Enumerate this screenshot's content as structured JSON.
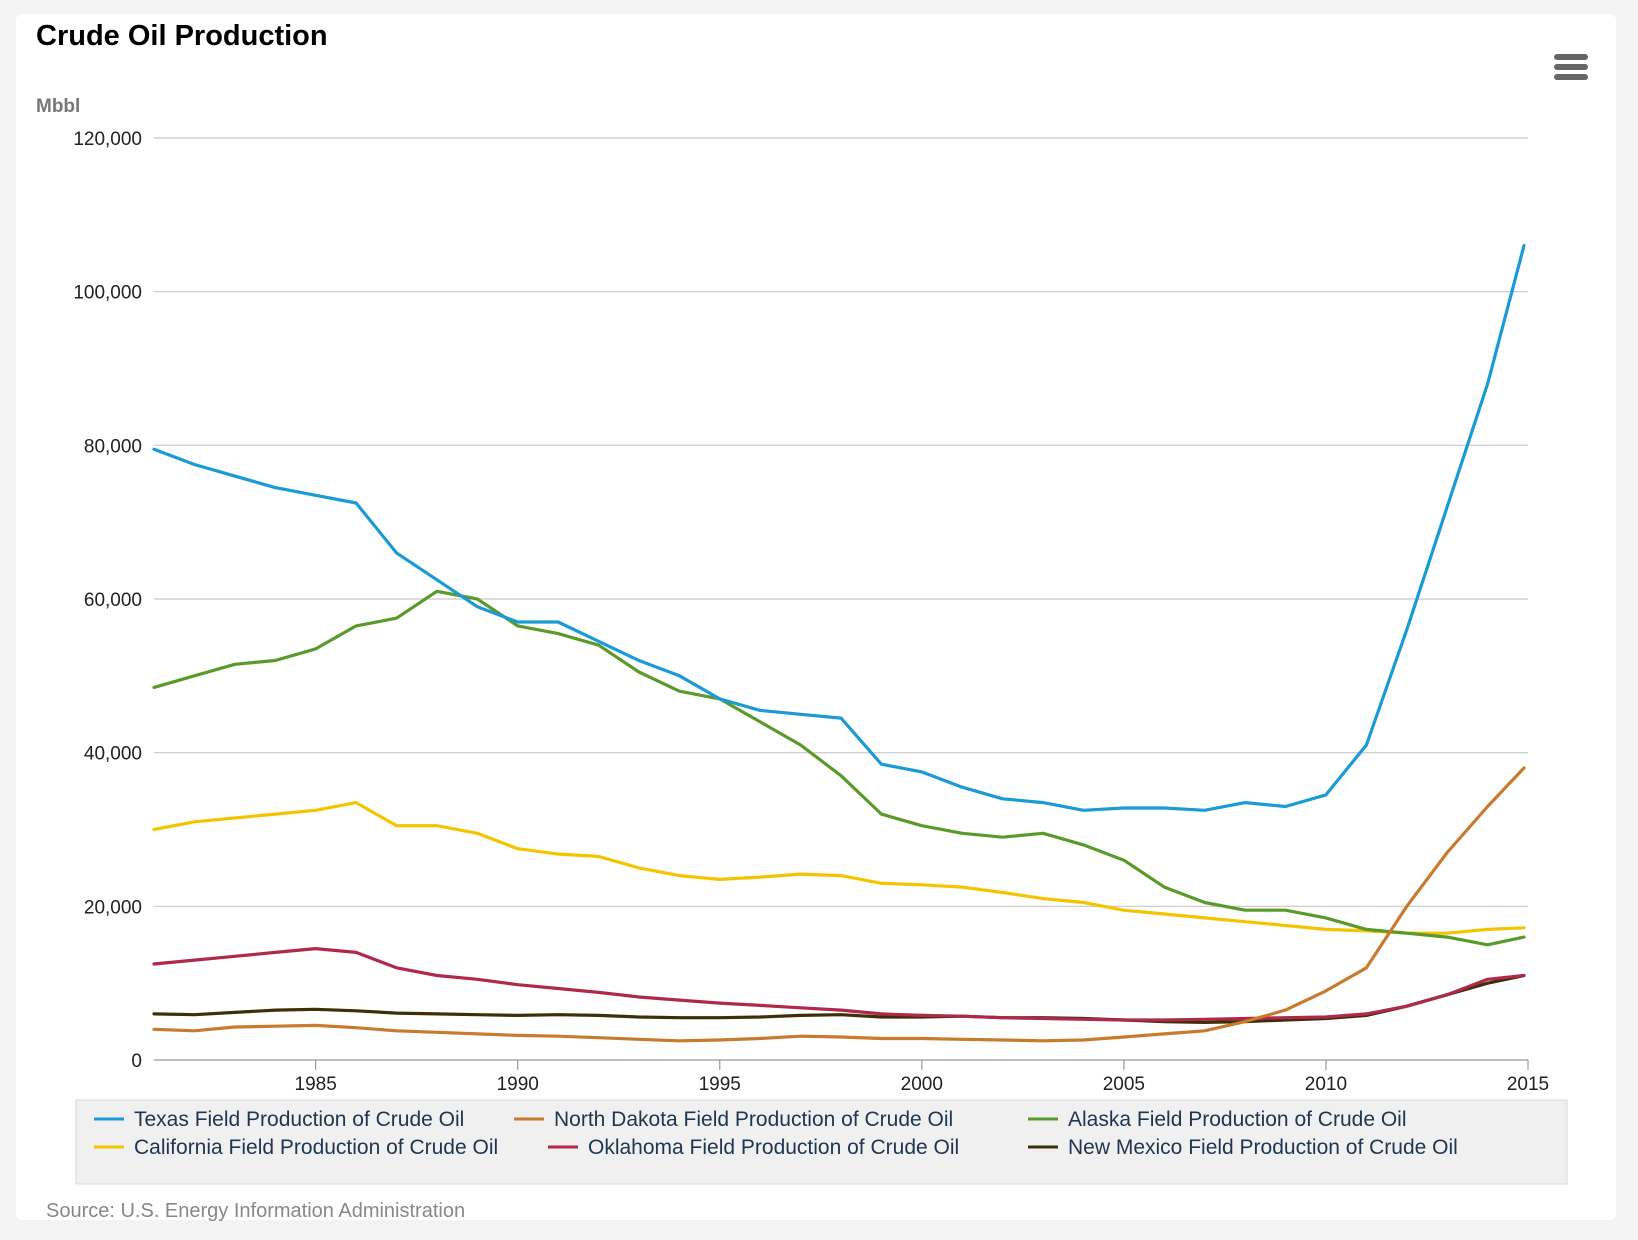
{
  "chart_data": {
    "type": "line",
    "title": "Crude Oil Production",
    "ylabel": "Mbbl",
    "source": "Source: U.S. Energy Information Administration",
    "xlim": [
      1981.0,
      2015.0
    ],
    "ylim": [
      0,
      120000
    ],
    "yticks": [
      0,
      20000,
      40000,
      60000,
      80000,
      100000,
      120000
    ],
    "ytick_labels": [
      "0",
      "20,000",
      "40,000",
      "60,000",
      "80,000",
      "100,000",
      "120,000"
    ],
    "xticks": [
      1985,
      1990,
      1995,
      2000,
      2005,
      2010,
      2015
    ],
    "xtick_labels": [
      "1985",
      "1990",
      "1995",
      "2000",
      "2005",
      "2010",
      "2015"
    ],
    "grid": "horizontal",
    "legend_position": "bottom",
    "series": [
      {
        "name": "Texas Field Production of Crude Oil",
        "color": "#1a9ad6",
        "x": [
          1981,
          1982,
          1983,
          1984,
          1985,
          1986,
          1987,
          1988,
          1989,
          1990,
          1991,
          1992,
          1993,
          1994,
          1995,
          1996,
          1997,
          1998,
          1999,
          2000,
          2001,
          2002,
          2003,
          2004,
          2005,
          2006,
          2007,
          2008,
          2009,
          2010,
          2011,
          2012,
          2013,
          2014,
          2014.9
        ],
        "y": [
          79500,
          77500,
          76000,
          74500,
          73500,
          72500,
          66000,
          62500,
          59000,
          57000,
          57000,
          54500,
          52000,
          50000,
          47000,
          45500,
          45000,
          44500,
          38500,
          37500,
          35500,
          34000,
          33500,
          32500,
          32800,
          32800,
          32500,
          33500,
          33000,
          34500,
          41000,
          56000,
          72000,
          88000,
          106000
        ]
      },
      {
        "name": "North Dakota Field Production of Crude Oil",
        "color": "#c87a2d",
        "x": [
          1981,
          1982,
          1983,
          1984,
          1985,
          1986,
          1987,
          1988,
          1989,
          1990,
          1991,
          1992,
          1993,
          1994,
          1995,
          1996,
          1997,
          1998,
          1999,
          2000,
          2001,
          2002,
          2003,
          2004,
          2005,
          2006,
          2007,
          2008,
          2009,
          2010,
          2011,
          2012,
          2013,
          2014,
          2014.9
        ],
        "y": [
          4000,
          3800,
          4300,
          4400,
          4500,
          4200,
          3800,
          3600,
          3400,
          3200,
          3100,
          2900,
          2700,
          2500,
          2600,
          2800,
          3100,
          3000,
          2800,
          2800,
          2700,
          2600,
          2500,
          2600,
          3000,
          3400,
          3800,
          5000,
          6500,
          9000,
          12000,
          20000,
          27000,
          33000,
          38000
        ]
      },
      {
        "name": "Alaska Field Production of Crude Oil",
        "color": "#5a9a2a",
        "x": [
          1981,
          1982,
          1983,
          1984,
          1985,
          1986,
          1987,
          1988,
          1989,
          1990,
          1991,
          1992,
          1993,
          1994,
          1995,
          1996,
          1997,
          1998,
          1999,
          2000,
          2001,
          2002,
          2003,
          2004,
          2005,
          2006,
          2007,
          2008,
          2009,
          2010,
          2011,
          2012,
          2013,
          2014,
          2014.9
        ],
        "y": [
          48500,
          50000,
          51500,
          52000,
          53500,
          56500,
          57500,
          61000,
          60000,
          56500,
          55500,
          54000,
          50500,
          48000,
          47000,
          44000,
          41000,
          37000,
          32000,
          30500,
          29500,
          29000,
          29500,
          28000,
          26000,
          22500,
          20500,
          19500,
          19500,
          18500,
          17000,
          16500,
          16000,
          15000,
          16000
        ]
      },
      {
        "name": "California Field Production of Crude Oil",
        "color": "#f5c400",
        "x": [
          1981,
          1982,
          1983,
          1984,
          1985,
          1986,
          1987,
          1988,
          1989,
          1990,
          1991,
          1992,
          1993,
          1994,
          1995,
          1996,
          1997,
          1998,
          1999,
          2000,
          2001,
          2002,
          2003,
          2004,
          2005,
          2006,
          2007,
          2008,
          2009,
          2010,
          2011,
          2012,
          2013,
          2014,
          2014.9
        ],
        "y": [
          30000,
          31000,
          31500,
          32000,
          32500,
          33500,
          30500,
          30500,
          29500,
          27500,
          26800,
          26500,
          25000,
          24000,
          23500,
          23800,
          24200,
          24000,
          23000,
          22800,
          22500,
          21800,
          21000,
          20500,
          19500,
          19000,
          18500,
          18000,
          17500,
          17000,
          16800,
          16500,
          16500,
          17000,
          17200
        ]
      },
      {
        "name": "Oklahoma Field Production of Crude Oil",
        "color": "#b0294a",
        "x": [
          1981,
          1982,
          1983,
          1984,
          1985,
          1986,
          1987,
          1988,
          1989,
          1990,
          1991,
          1992,
          1993,
          1994,
          1995,
          1996,
          1997,
          1998,
          1999,
          2000,
          2001,
          2002,
          2003,
          2004,
          2005,
          2006,
          2007,
          2008,
          2009,
          2010,
          2011,
          2012,
          2013,
          2014,
          2014.9
        ],
        "y": [
          12500,
          13000,
          13500,
          14000,
          14500,
          14000,
          12000,
          11000,
          10500,
          9800,
          9300,
          8800,
          8200,
          7800,
          7400,
          7100,
          6800,
          6500,
          6000,
          5800,
          5700,
          5500,
          5400,
          5300,
          5200,
          5200,
          5300,
          5400,
          5500,
          5600,
          6000,
          7000,
          8500,
          10500,
          11000
        ]
      },
      {
        "name": "New Mexico Field Production of Crude Oil",
        "color": "#3d2f08",
        "x": [
          1981,
          1982,
          1983,
          1984,
          1985,
          1986,
          1987,
          1988,
          1989,
          1990,
          1991,
          1992,
          1993,
          1994,
          1995,
          1996,
          1997,
          1998,
          1999,
          2000,
          2001,
          2002,
          2003,
          2004,
          2005,
          2006,
          2007,
          2008,
          2009,
          2010,
          2011,
          2012,
          2013,
          2014,
          2014.9
        ],
        "y": [
          6000,
          5900,
          6200,
          6500,
          6600,
          6400,
          6100,
          6000,
          5900,
          5800,
          5900,
          5800,
          5600,
          5500,
          5500,
          5600,
          5800,
          5900,
          5600,
          5600,
          5700,
          5500,
          5500,
          5400,
          5200,
          5000,
          4900,
          5000,
          5200,
          5400,
          5800,
          7000,
          8500,
          10000,
          11000
        ]
      }
    ]
  }
}
